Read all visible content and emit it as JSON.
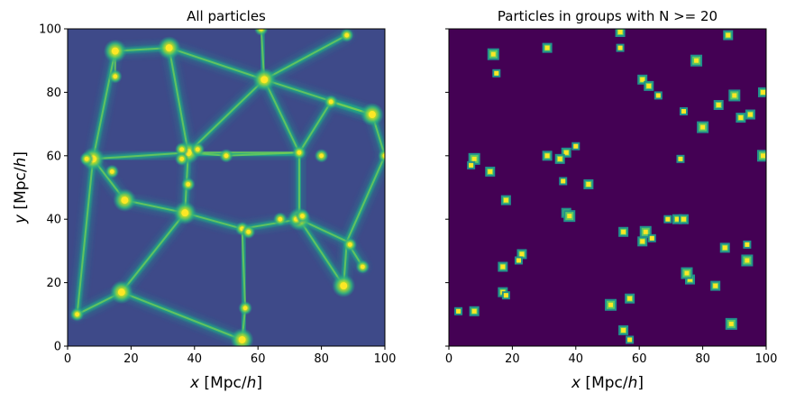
{
  "chart_data": [
    {
      "type": "heatmap",
      "title": "All particles",
      "xlabel": "$x$ [Mpc/$h$]",
      "ylabel": "$y$ [Mpc/$h$]",
      "xlim": [
        0,
        100
      ],
      "ylim": [
        0,
        100
      ],
      "xticks": [
        "0",
        "20",
        "40",
        "60",
        "80",
        "100"
      ],
      "yticks": [
        "0",
        "20",
        "40",
        "60",
        "80",
        "100"
      ],
      "colormap": "viridis",
      "grid": false,
      "halos": [
        [
          15,
          93
        ],
        [
          32,
          94
        ],
        [
          62,
          84
        ],
        [
          96,
          73
        ],
        [
          38,
          61
        ],
        [
          8,
          59
        ],
        [
          18,
          46
        ],
        [
          37,
          42
        ],
        [
          73,
          40
        ],
        [
          87,
          19
        ],
        [
          17,
          17
        ],
        [
          55,
          2
        ],
        [
          3,
          10
        ],
        [
          88,
          98
        ],
        [
          61,
          100
        ],
        [
          55,
          37
        ],
        [
          80,
          60
        ],
        [
          6,
          59
        ],
        [
          50,
          60
        ],
        [
          72,
          40
        ],
        [
          67,
          40
        ],
        [
          14,
          55
        ],
        [
          83,
          77
        ],
        [
          100,
          60
        ],
        [
          38,
          51
        ],
        [
          36,
          62
        ],
        [
          41,
          62
        ],
        [
          57,
          36
        ],
        [
          74,
          41
        ],
        [
          36,
          59
        ],
        [
          89,
          32
        ],
        [
          73,
          61
        ],
        [
          15,
          85
        ],
        [
          93,
          25
        ],
        [
          56,
          12
        ]
      ],
      "ridges": [
        [
          [
            15,
            93
          ],
          [
            32,
            94
          ],
          [
            62,
            84
          ],
          [
            96,
            73
          ]
        ],
        [
          [
            15,
            93
          ],
          [
            8,
            59
          ],
          [
            3,
            10
          ]
        ],
        [
          [
            32,
            94
          ],
          [
            38,
            61
          ],
          [
            37,
            42
          ],
          [
            17,
            17
          ]
        ],
        [
          [
            62,
            84
          ],
          [
            38,
            61
          ]
        ],
        [
          [
            62,
            84
          ],
          [
            73,
            61
          ],
          [
            73,
            40
          ]
        ],
        [
          [
            96,
            73
          ],
          [
            100,
            60
          ],
          [
            88,
            33
          ],
          [
            87,
            19
          ]
        ],
        [
          [
            8,
            59
          ],
          [
            38,
            61
          ],
          [
            73,
            61
          ]
        ],
        [
          [
            18,
            46
          ],
          [
            37,
            42
          ],
          [
            55,
            37
          ],
          [
            73,
            40
          ]
        ],
        [
          [
            73,
            40
          ],
          [
            87,
            19
          ]
        ],
        [
          [
            55,
            2
          ],
          [
            56,
            12
          ],
          [
            55,
            37
          ]
        ],
        [
          [
            17,
            17
          ],
          [
            55,
            2
          ]
        ],
        [
          [
            88,
            98
          ],
          [
            62,
            84
          ]
        ],
        [
          [
            61,
            100
          ],
          [
            62,
            84
          ]
        ],
        [
          [
            3,
            10
          ],
          [
            17,
            17
          ]
        ],
        [
          [
            18,
            46
          ],
          [
            8,
            59
          ]
        ],
        [
          [
            73,
            40
          ],
          [
            88,
            33
          ],
          [
            93,
            25
          ]
        ],
        [
          [
            38,
            61
          ],
          [
            50,
            60
          ],
          [
            73,
            61
          ]
        ],
        [
          [
            96,
            73
          ],
          [
            83,
            77
          ],
          [
            73,
            61
          ]
        ],
        [
          [
            15,
            85
          ],
          [
            15,
            93
          ]
        ]
      ]
    },
    {
      "type": "heatmap",
      "title": "Particles in groups with N >= 20",
      "xlabel": "$x$ [Mpc/$h$]",
      "xlim": [
        0,
        100
      ],
      "ylim": [
        0,
        100
      ],
      "xticks": [
        "0",
        "20",
        "40",
        "60",
        "80",
        "100"
      ],
      "colormap": "viridis",
      "background": "#440154",
      "grid": false,
      "groups": [
        [
          14,
          92
        ],
        [
          31,
          94
        ],
        [
          54,
          99
        ],
        [
          54,
          94
        ],
        [
          88,
          98
        ],
        [
          78,
          90
        ],
        [
          15,
          86
        ],
        [
          61,
          84
        ],
        [
          63,
          82
        ],
        [
          66,
          79
        ],
        [
          90,
          79
        ],
        [
          85,
          76
        ],
        [
          74,
          74
        ],
        [
          95,
          73
        ],
        [
          92,
          72
        ],
        [
          80,
          69
        ],
        [
          99,
          80
        ],
        [
          37,
          61
        ],
        [
          40,
          63
        ],
        [
          35,
          59
        ],
        [
          8,
          59
        ],
        [
          7,
          57
        ],
        [
          31,
          60
        ],
        [
          13,
          55
        ],
        [
          73,
          59
        ],
        [
          99,
          60
        ],
        [
          44,
          51
        ],
        [
          36,
          52
        ],
        [
          18,
          46
        ],
        [
          37,
          42
        ],
        [
          38,
          41
        ],
        [
          72,
          40
        ],
        [
          74,
          40
        ],
        [
          69,
          40
        ],
        [
          55,
          36
        ],
        [
          62,
          36
        ],
        [
          64,
          34
        ],
        [
          61,
          33
        ],
        [
          87,
          31
        ],
        [
          94,
          32
        ],
        [
          94,
          27
        ],
        [
          23,
          29
        ],
        [
          22,
          27
        ],
        [
          17,
          25
        ],
        [
          76,
          21
        ],
        [
          75,
          23
        ],
        [
          84,
          19
        ],
        [
          17,
          17
        ],
        [
          18,
          16
        ],
        [
          57,
          15
        ],
        [
          51,
          13
        ],
        [
          3,
          11
        ],
        [
          8,
          11
        ],
        [
          55,
          5
        ],
        [
          57,
          2
        ],
        [
          89,
          7
        ]
      ]
    }
  ],
  "colors": {
    "viridis_low": "#440154",
    "viridis_mid": "#21918c",
    "viridis_high": "#fde725"
  }
}
